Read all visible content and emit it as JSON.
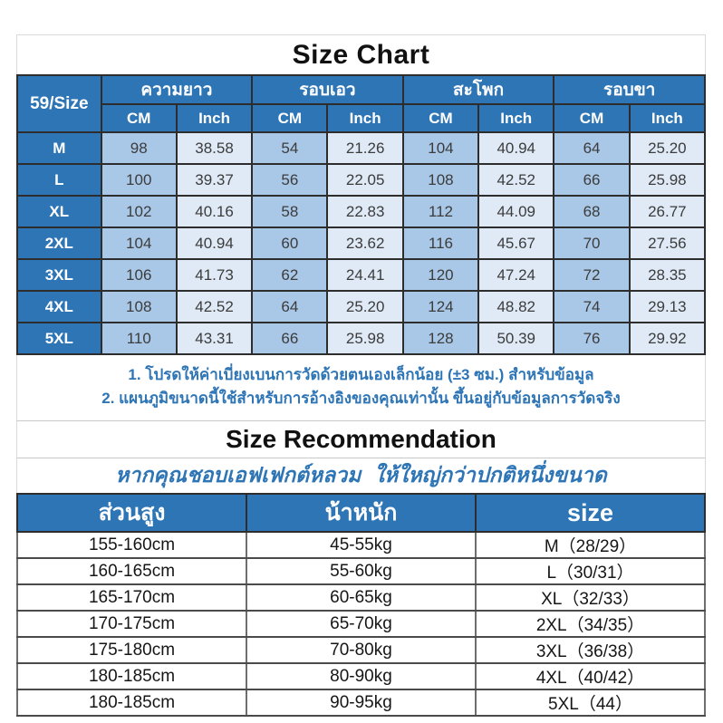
{
  "colors": {
    "header_blue": "#2e75b6",
    "cm_cell_blue": "#a9c7e6",
    "inch_cell_blue": "#dfeaf6",
    "note_blue": "#2e75b6",
    "title_black": "#111111"
  },
  "size_chart": {
    "title": "Size Chart",
    "corner_label": "59/Size",
    "groups": [
      "ความยาว",
      "รอบเอว",
      "สะโพก",
      "รอบขา"
    ],
    "unit_headers": [
      "CM",
      "Inch",
      "CM",
      "Inch",
      "CM",
      "Inch",
      "CM",
      "Inch"
    ],
    "rows": [
      {
        "size": "M",
        "values": [
          "98",
          "38.58",
          "54",
          "21.26",
          "104",
          "40.94",
          "64",
          "25.20"
        ]
      },
      {
        "size": "L",
        "values": [
          "100",
          "39.37",
          "56",
          "22.05",
          "108",
          "42.52",
          "66",
          "25.98"
        ]
      },
      {
        "size": "XL",
        "values": [
          "102",
          "40.16",
          "58",
          "22.83",
          "112",
          "44.09",
          "68",
          "26.77"
        ]
      },
      {
        "size": "2XL",
        "values": [
          "104",
          "40.94",
          "60",
          "23.62",
          "116",
          "45.67",
          "70",
          "27.56"
        ]
      },
      {
        "size": "3XL",
        "values": [
          "106",
          "41.73",
          "62",
          "24.41",
          "120",
          "47.24",
          "72",
          "28.35"
        ]
      },
      {
        "size": "4XL",
        "values": [
          "108",
          "42.52",
          "64",
          "25.20",
          "124",
          "48.82",
          "74",
          "29.13"
        ]
      },
      {
        "size": "5XL",
        "values": [
          "110",
          "43.31",
          "66",
          "25.98",
          "128",
          "50.39",
          "76",
          "29.92"
        ]
      }
    ],
    "notes": [
      "1. โปรดให้ค่าเบี่ยงเบนการวัดด้วยตนเองเล็กน้อย (±3 ซม.) สำหรับข้อมูล",
      "2. แผนภูมิขนาดนี้ใช้สำหรับการอ้างอิงของคุณเท่านั้น ขึ้นอยู่กับข้อมูลการวัดจริง"
    ]
  },
  "recommendation": {
    "title": "Size Recommendation",
    "subtitle": "หากคุณชอบเอฟเฟกต์หลวม ให้ใหญ่กว่าปกติหนึ่งขนาด",
    "headers": [
      "ส่วนสูง",
      "น้าหนัก",
      "size"
    ],
    "rows": [
      [
        "155-160cm",
        "45-55kg",
        "M（28/29）"
      ],
      [
        "160-165cm",
        "55-60kg",
        "L（30/31）"
      ],
      [
        "165-170cm",
        "60-65kg",
        "XL（32/33）"
      ],
      [
        "170-175cm",
        "65-70kg",
        "2XL（34/35）"
      ],
      [
        "175-180cm",
        "70-80kg",
        "3XL（36/38）"
      ],
      [
        "180-185cm",
        "80-90kg",
        "4XL（40/42）"
      ],
      [
        "180-185cm",
        "90-95kg",
        "5XL（44）"
      ]
    ]
  },
  "chart_data": [
    {
      "type": "table",
      "title": "Size Chart",
      "columns": [
        "59/Size",
        "ความยาว CM",
        "ความยาว Inch",
        "รอบเอว CM",
        "รอบเอว Inch",
        "สะโพก CM",
        "สะโพก Inch",
        "รอบขา CM",
        "รอบขา Inch"
      ],
      "rows": [
        [
          "M",
          98,
          38.58,
          54,
          21.26,
          104,
          40.94,
          64,
          25.2
        ],
        [
          "L",
          100,
          39.37,
          56,
          22.05,
          108,
          42.52,
          66,
          25.98
        ],
        [
          "XL",
          102,
          40.16,
          58,
          22.83,
          112,
          44.09,
          68,
          26.77
        ],
        [
          "2XL",
          104,
          40.94,
          60,
          23.62,
          116,
          45.67,
          70,
          27.56
        ],
        [
          "3XL",
          106,
          41.73,
          62,
          24.41,
          120,
          47.24,
          72,
          28.35
        ],
        [
          "4XL",
          108,
          42.52,
          64,
          25.2,
          124,
          48.82,
          74,
          29.13
        ],
        [
          "5XL",
          110,
          43.31,
          66,
          25.98,
          128,
          50.39,
          76,
          29.92
        ]
      ]
    },
    {
      "type": "table",
      "title": "Size Recommendation",
      "columns": [
        "ส่วนสูง",
        "น้าหนัก",
        "size"
      ],
      "rows": [
        [
          "155-160cm",
          "45-55kg",
          "M（28/29）"
        ],
        [
          "160-165cm",
          "55-60kg",
          "L（30/31）"
        ],
        [
          "165-170cm",
          "60-65kg",
          "XL（32/33）"
        ],
        [
          "170-175cm",
          "65-70kg",
          "2XL（34/35）"
        ],
        [
          "175-180cm",
          "70-80kg",
          "3XL（36/38）"
        ],
        [
          "180-185cm",
          "80-90kg",
          "4XL（40/42）"
        ],
        [
          "180-185cm",
          "90-95kg",
          "5XL（44）"
        ]
      ]
    }
  ]
}
